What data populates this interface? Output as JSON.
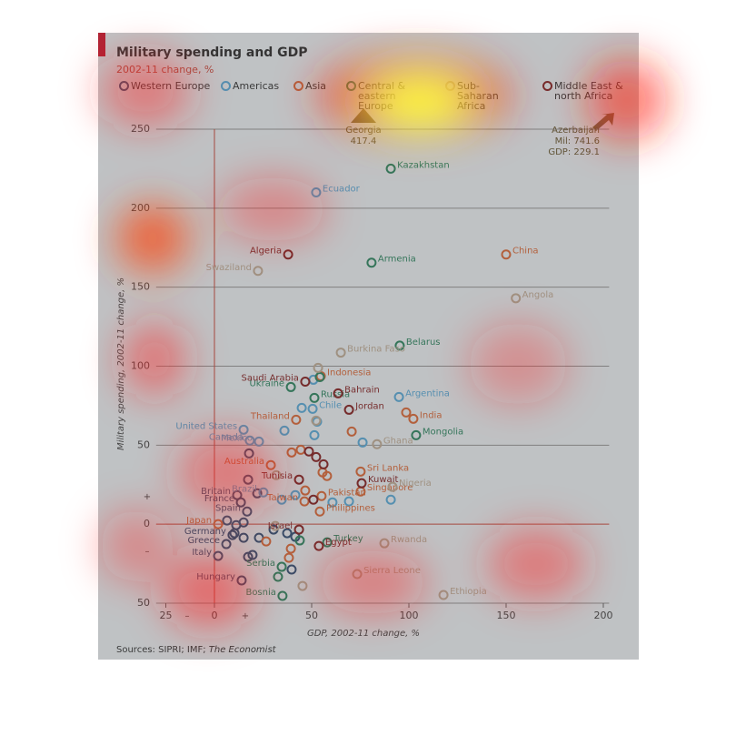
{
  "chart_data": {
    "type": "scatter",
    "title": "Military spending and GDP",
    "subtitle": "2002-11 change, %",
    "x_label": "GDP, 2002-11 change, %",
    "y_label": "Military spending, 2002-11 change, %",
    "source": {
      "text": "Sources: SIPRI; IMF;",
      "publisher": "The Economist"
    },
    "y_signs": {
      "positive": "+",
      "negative": "–"
    },
    "x_signs": {
      "negative": "–",
      "positive": "+"
    },
    "xlim": [
      -30,
      203
    ],
    "ylim": [
      -50,
      250
    ],
    "xticks": [
      {
        "value": -25,
        "label": "25"
      },
      0,
      50,
      100,
      150,
      200
    ],
    "yticks": [
      {
        "value": -50,
        "label": "50"
      },
      0,
      50,
      100,
      150,
      200,
      250
    ],
    "grid": true,
    "annotations": [
      {
        "lines": [
          "Georgia",
          "417.4"
        ]
      },
      {
        "lines": [
          "Azerbaijan",
          "Mil: 741.6",
          "GDP: 229.1"
        ]
      }
    ],
    "series": [
      {
        "name": "Western Europe",
        "color": "#1f3f66",
        "x": [
          11.7,
          13.6,
          16.8,
          9.3,
          6.1,
          1.9,
          14.0,
          17.8,
          17.3,
          22.0,
          6.5,
          15.0,
          11.2,
          10.3,
          15.0,
          22.9,
          30.4,
          17.3,
          19.6,
          37.4,
          41.6,
          39.7
        ],
        "values": [
          18.4,
          13.8,
          8.0,
          -6.9,
          -12.6,
          -20.1,
          -35.6,
          44.8,
          28.2,
          19.5,
          2.3,
          1.1,
          -0.6,
          -5.7,
          -8.6,
          -8.6,
          -3.4,
          -20.7,
          -19.5,
          -5.7,
          -8.0,
          -28.7
        ],
        "labels": [
          "Britain",
          "France",
          "Spain",
          "Germany",
          "Greece",
          "Italy",
          "Hungary",
          null,
          null,
          null,
          null,
          null,
          null,
          null,
          null,
          null,
          null,
          null,
          null,
          null,
          null,
          null
        ]
      },
      {
        "name": "Americas",
        "color": "#4a9fd0",
        "x": [
          52.3,
          94.9,
          50.5,
          15.0,
          18.2,
          22.9,
          25.2,
          36.0,
          51.4,
          52.8,
          44.9,
          76.2,
          50.9,
          69.2,
          90.7,
          34.6,
          41.6,
          60.7
        ],
        "values": [
          210,
          80.5,
          73.0,
          59.8,
          52.9,
          52.3,
          20.1,
          59.2,
          56.3,
          64.9,
          73.6,
          51.7,
          91.4,
          14.4,
          15.5,
          15.5,
          18.4,
          13.8
        ],
        "labels": [
          "Ecuador",
          "Argentina",
          "Chile",
          "United States",
          "Canada",
          "Mexico",
          "Brazil",
          null,
          null,
          null,
          null,
          null,
          null,
          null,
          null,
          null,
          null,
          null
        ]
      },
      {
        "name": "Asia",
        "color": "#d45a26",
        "x": [
          150,
          54.7,
          42.0,
          102.3,
          29.0,
          75.2,
          55.1,
          75.2,
          46.3,
          54.2,
          1.9,
          98.6,
          39.7,
          44.4,
          55.6,
          57.9,
          70.6,
          46.7,
          26.6,
          39.3,
          38.3
        ],
        "values": [
          170.7,
          93.7,
          66.1,
          66.7,
          37.4,
          33.3,
          17.8,
          20.7,
          14.4,
          8.0,
          0,
          70.7,
          45.4,
          47.1,
          32.8,
          30.5,
          58.6,
          21.3,
          -10.9,
          -15.5,
          -21.3
        ],
        "labels": [
          "China",
          "Indonesia",
          "Thailand",
          "India",
          "Australia",
          "Sri Lanka",
          "Pakistan",
          "Singapore",
          "Taiwan",
          "Philippines",
          "Japan",
          null,
          null,
          null,
          null,
          null,
          null,
          null,
          null,
          null,
          null
        ]
      },
      {
        "name": "Central & eastern Europe",
        "color": "#1b7a52",
        "x": [
          90.7,
          80.8,
          95.3,
          39.3,
          51.4,
          103.7,
          58.0,
          34.6,
          35.0,
          54.2,
          32.7,
          43.9
        ],
        "values": [
          225,
          165.5,
          113,
          86.8,
          79.9,
          56.3,
          -11.5,
          -27.0,
          -45.4,
          93.1,
          -33.3,
          -10.3
        ],
        "labels": [
          "Kazakhstan",
          "Armenia",
          "Belarus",
          "Ukraine",
          "Russia",
          "Mongolia",
          "Turkey",
          "Serbia",
          "Bosnia",
          null,
          null,
          null
        ]
      },
      {
        "name": "Sub-Saharan Africa",
        "color": "#b7a28b",
        "x": [
          22.4,
          155,
          65.0,
          83.6,
          91.6,
          87.4,
          73.4,
          117.8,
          53.3,
          52.3,
          31.8,
          45.3,
          31.3
        ],
        "values": [
          160.3,
          143,
          108.6,
          50.6,
          23.6,
          -12.1,
          -31.6,
          -44.8,
          98.9,
          65.5,
          31.0,
          -39.1,
          -1.1
        ],
        "labels": [
          "Swaziland",
          "Angola",
          "Burkina Faso",
          "Ghana",
          "Nigeria",
          "Rwanda",
          "Sierra Leone",
          "Ethiopia",
          null,
          null,
          null,
          null,
          null
        ]
      },
      {
        "name": "Middle East & north Africa",
        "color": "#7a0e0e",
        "x": [
          37.9,
          46.7,
          63.6,
          69.2,
          43.5,
          75.7,
          43.5,
          53.7,
          48.6,
          52.3,
          56.1,
          50.9
        ],
        "values": [
          170.7,
          90.2,
          82.8,
          72.4,
          28.2,
          25.9,
          -3.4,
          -13.8,
          46.0,
          42.5,
          37.9,
          15.5
        ],
        "labels": [
          "Algeria",
          "Saudi Arabia",
          "Bahrain",
          "Jordan",
          "Tunisia",
          "Kuwait",
          "Israel",
          "Egypt",
          null,
          null,
          null,
          null
        ]
      }
    ]
  }
}
